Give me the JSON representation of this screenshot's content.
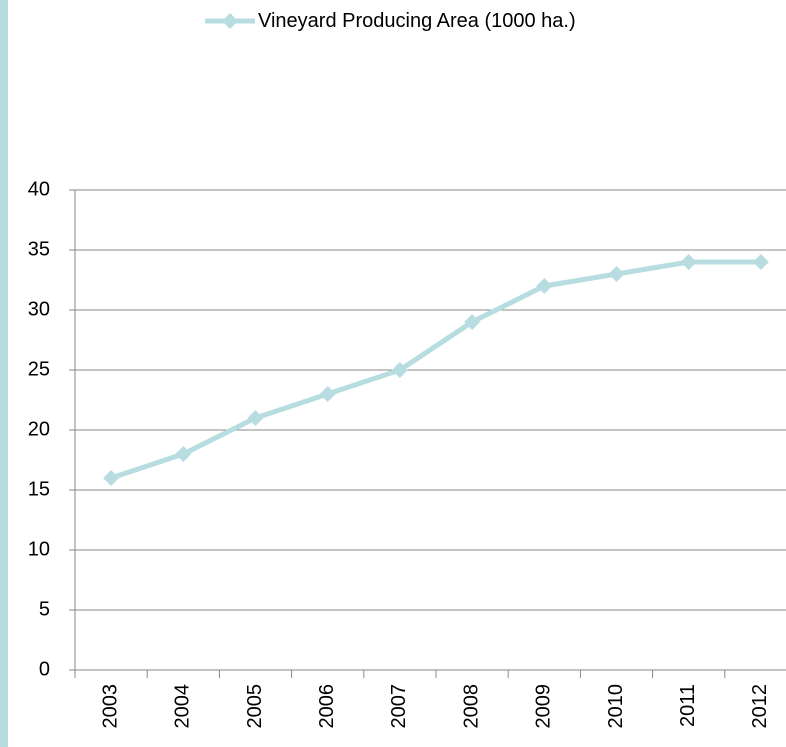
{
  "chart_data": {
    "type": "line",
    "categories": [
      "2003",
      "2004",
      "2005",
      "2006",
      "2007",
      "2008",
      "2009",
      "2010",
      "2011",
      "2012"
    ],
    "series": [
      {
        "name": "Vineyard Producing Area (1000 ha.)",
        "color": "#b7dde0",
        "values": [
          16,
          18,
          21,
          23,
          25,
          29,
          32,
          33,
          34,
          34
        ]
      }
    ],
    "ylim": [
      0,
      40
    ],
    "yticks": [
      0,
      5,
      10,
      15,
      20,
      25,
      30,
      35,
      40
    ],
    "grid": true,
    "legend": "top"
  }
}
